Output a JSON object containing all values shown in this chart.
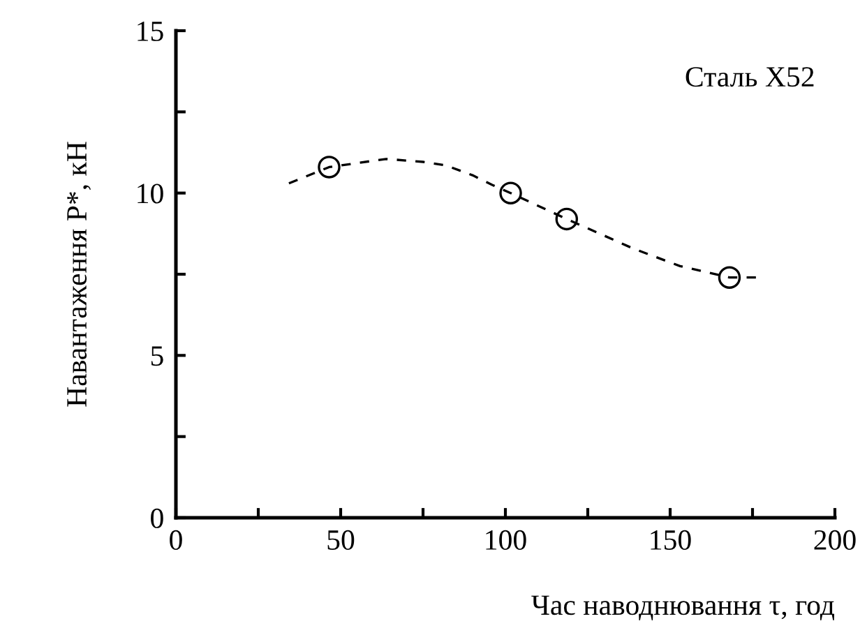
{
  "chart_data": {
    "type": "scatter",
    "xlabel": "Час наводнювання τ, год",
    "ylabel": "Навантаження P*, кН",
    "annotations": [
      "Сталь X52"
    ],
    "xlim": [
      0,
      200
    ],
    "ylim": [
      0,
      15
    ],
    "xticks": [
      0,
      {
        "value": 25,
        "label": null
      },
      50,
      {
        "value": 75,
        "label": null
      },
      100,
      {
        "value": 125,
        "label": null
      },
      150,
      {
        "value": 175,
        "label": null
      },
      200
    ],
    "yticks": [
      0,
      {
        "value": 2.5,
        "label": null
      },
      5,
      {
        "value": 7.5,
        "label": null
      },
      10,
      {
        "value": 12.5,
        "label": null
      },
      15
    ],
    "grid": false,
    "legend": false,
    "series": [
      {
        "color": "#000000",
        "marker": "circle",
        "x": [
          46.5,
          101.6,
          118.6,
          168
        ],
        "values": [
          10.8,
          10.0,
          9.2,
          7.4
        ]
      },
      {
        "type": "line",
        "color": "#000000",
        "line_style": "dashed",
        "marker": "none",
        "x": [
          34.3,
          46.5,
          63.8,
          75,
          82,
          90,
          96,
          101.6,
          118.6,
          138.6,
          153,
          168,
          177
        ],
        "values": [
          10.3,
          10.8,
          11.05,
          10.96,
          10.85,
          10.55,
          10.25,
          10.0,
          9.2,
          8.3,
          7.75,
          7.4,
          7.4
        ]
      }
    ]
  }
}
